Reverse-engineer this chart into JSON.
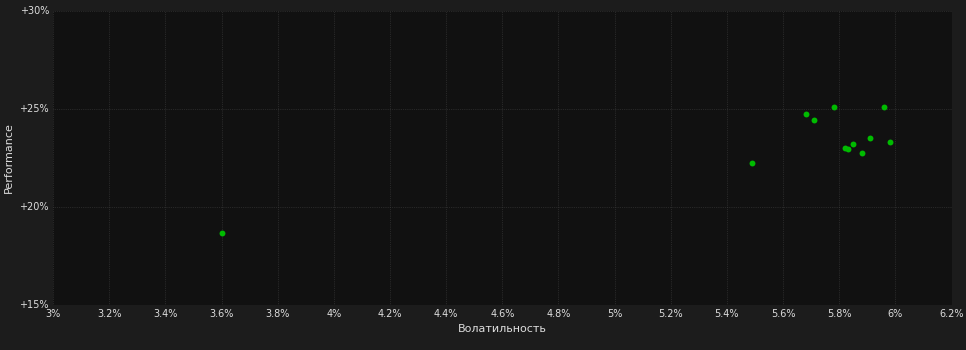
{
  "xlabel": "Волатильность",
  "ylabel": "Performance",
  "background_color": "#1c1c1c",
  "plot_bg_color": "#111111",
  "dot_color": "#00bb00",
  "text_color": "#dddddd",
  "grid_color": "#444444",
  "xlim": [
    0.03,
    0.062
  ],
  "ylim": [
    0.15,
    0.3
  ],
  "xticks": [
    0.03,
    0.032,
    0.034,
    0.036,
    0.038,
    0.04,
    0.042,
    0.044,
    0.046,
    0.048,
    0.05,
    0.052,
    0.054,
    0.056,
    0.058,
    0.06,
    0.062
  ],
  "yticks": [
    0.15,
    0.2,
    0.25,
    0.3
  ],
  "pts_x": [
    0.036,
    0.0549,
    0.0568,
    0.0571,
    0.0578,
    0.0582,
    0.0583,
    0.0585,
    0.0588,
    0.0591,
    0.0596,
    0.0598
  ],
  "pts_y": [
    0.1865,
    0.222,
    0.247,
    0.244,
    0.251,
    0.23,
    0.2295,
    0.232,
    0.2275,
    0.235,
    0.251,
    0.233
  ]
}
